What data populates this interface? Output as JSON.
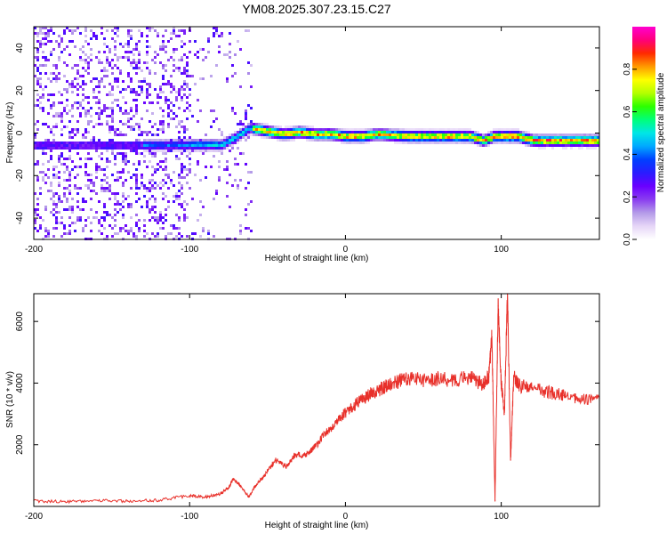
{
  "title": "YM08.2025.307.23.15.C27",
  "colors": {
    "snr_line": "#e8302a",
    "axis": "#000000",
    "colormap": [
      "#ffffff",
      "#e6d6f7",
      "#b49be8",
      "#8a3df0",
      "#6a00ff",
      "#2a1cff",
      "#0040ff",
      "#00a8ff",
      "#00e6e6",
      "#00ff7a",
      "#2cff00",
      "#b4ff00",
      "#ffff00",
      "#ff9a00",
      "#ff2a00",
      "#ff007a",
      "#ff00d0"
    ]
  },
  "chart_data": [
    {
      "type": "heatmap",
      "name": "spectrogram",
      "title": "YM08.2025.307.23.15.C27",
      "xlabel": "Height of straight line (km)",
      "ylabel": "Frequency (Hz)",
      "xlim": [
        -200,
        163
      ],
      "ylim": [
        -50,
        50
      ],
      "xticks": [
        -200,
        -100,
        0,
        100
      ],
      "yticks": [
        -40,
        -20,
        0,
        20,
        40
      ],
      "grid": false,
      "colorbar": {
        "label": "Normalized spectral amplitude",
        "range": [
          0,
          1
        ],
        "ticks": [
          0.0,
          0.2,
          0.4,
          0.6,
          0.8
        ]
      },
      "ridge": {
        "description_points_x": [
          -130,
          -110,
          -100,
          -90,
          -80,
          -70,
          -62,
          -55,
          -48,
          -40,
          -30,
          -20,
          -10,
          0,
          10,
          20,
          40,
          60,
          80,
          88,
          95,
          100,
          110,
          120,
          163
        ],
        "description_points_f": [
          -5,
          -5,
          -5,
          -5,
          -5,
          -1,
          3,
          2,
          1,
          0,
          1,
          0,
          0,
          -1,
          -1,
          0,
          -1,
          -1,
          -1,
          -3,
          -1,
          -1,
          -1,
          -3,
          -3
        ]
      }
    },
    {
      "type": "line",
      "name": "snr",
      "xlabel": "Height of straight line (km)",
      "ylabel": "SNR (10 * v/v)",
      "xlim": [
        -200,
        163
      ],
      "ylim": [
        0,
        6900
      ],
      "xticks": [
        -200,
        -100,
        0,
        100
      ],
      "yticks": [
        2000,
        4000,
        6000
      ],
      "grid": false,
      "series": [
        {
          "name": "SNR",
          "x": [
            -200,
            -180,
            -160,
            -140,
            -120,
            -100,
            -90,
            -80,
            -75,
            -72,
            -68,
            -62,
            -58,
            -52,
            -45,
            -38,
            -32,
            -26,
            -20,
            -14,
            -8,
            -2,
            4,
            10,
            16,
            22,
            28,
            34,
            40,
            50,
            60,
            70,
            80,
            88,
            92,
            94,
            96,
            98,
            100,
            102,
            104,
            106,
            108,
            112,
            120,
            130,
            140,
            150,
            163
          ],
          "values": [
            180,
            150,
            200,
            170,
            200,
            350,
            300,
            420,
            600,
            900,
            700,
            300,
            650,
            1000,
            1500,
            1300,
            1700,
            1650,
            1900,
            2300,
            2600,
            2950,
            3200,
            3450,
            3650,
            3800,
            3950,
            4050,
            4150,
            4100,
            4150,
            4100,
            4200,
            3950,
            4200,
            5500,
            200,
            6500,
            4000,
            3000,
            6900,
            1500,
            4200,
            3900,
            3850,
            3700,
            3600,
            3450,
            3500
          ]
        }
      ]
    }
  ]
}
